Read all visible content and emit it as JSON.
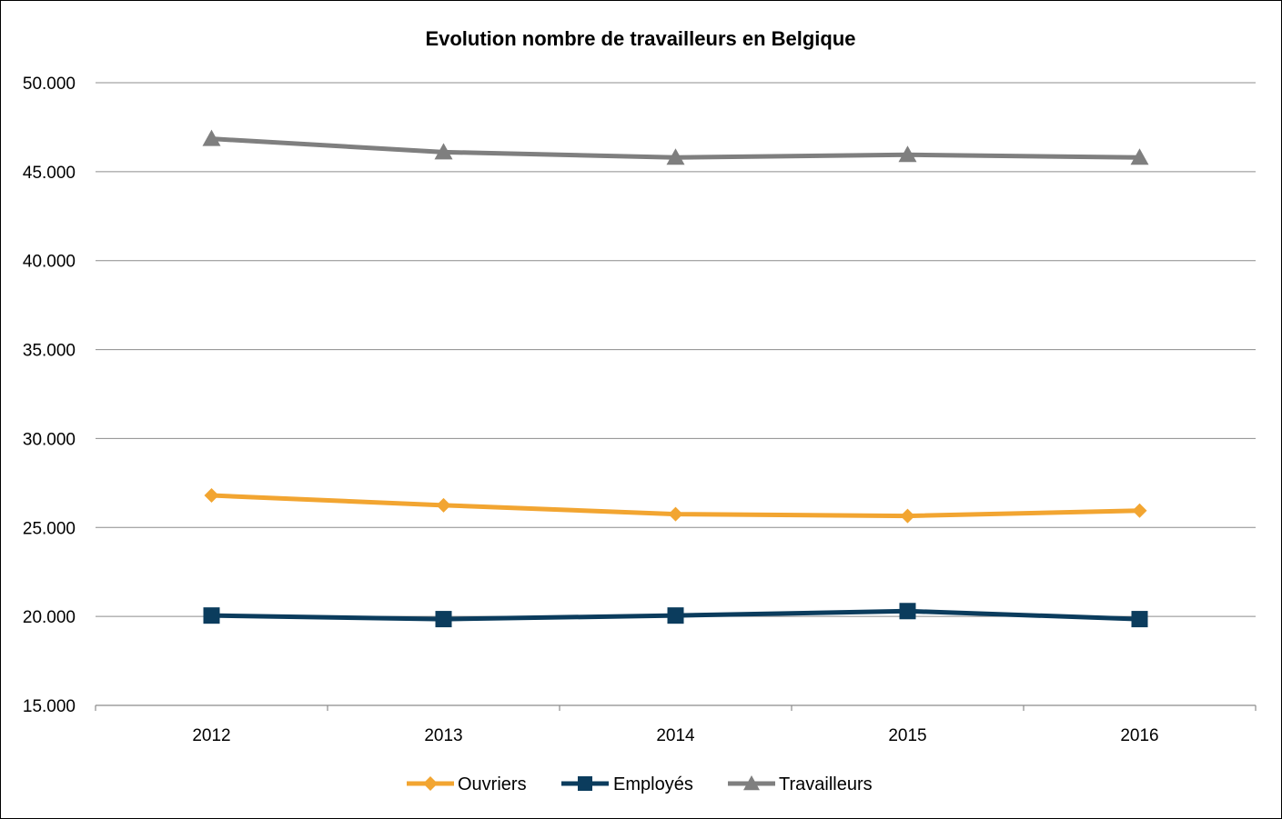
{
  "chart_data": {
    "type": "line",
    "title": "Evolution nombre de travailleurs en Belgique",
    "xlabel": "",
    "ylabel": "",
    "categories": [
      "2012",
      "2013",
      "2014",
      "2015",
      "2016"
    ],
    "ylim": [
      15000,
      50000
    ],
    "yticks": [
      15000,
      20000,
      25000,
      30000,
      35000,
      40000,
      45000,
      50000
    ],
    "ytick_labels": [
      "15.000",
      "20.000",
      "25.000",
      "30.000",
      "35.000",
      "40.000",
      "45.000",
      "50.000"
    ],
    "grid": true,
    "legend_position": "bottom",
    "series": [
      {
        "name": "Ouvriers",
        "values": [
          26800,
          26250,
          25750,
          25650,
          25950
        ],
        "color": "#F2A531",
        "marker": "diamond"
      },
      {
        "name": "Employés",
        "values": [
          20050,
          19850,
          20050,
          20300,
          19850
        ],
        "color": "#0B3C5D",
        "marker": "square"
      },
      {
        "name": "Travailleurs",
        "values": [
          46850,
          46100,
          45800,
          45950,
          45800
        ],
        "color": "#7F7F7F",
        "marker": "triangle"
      }
    ]
  }
}
